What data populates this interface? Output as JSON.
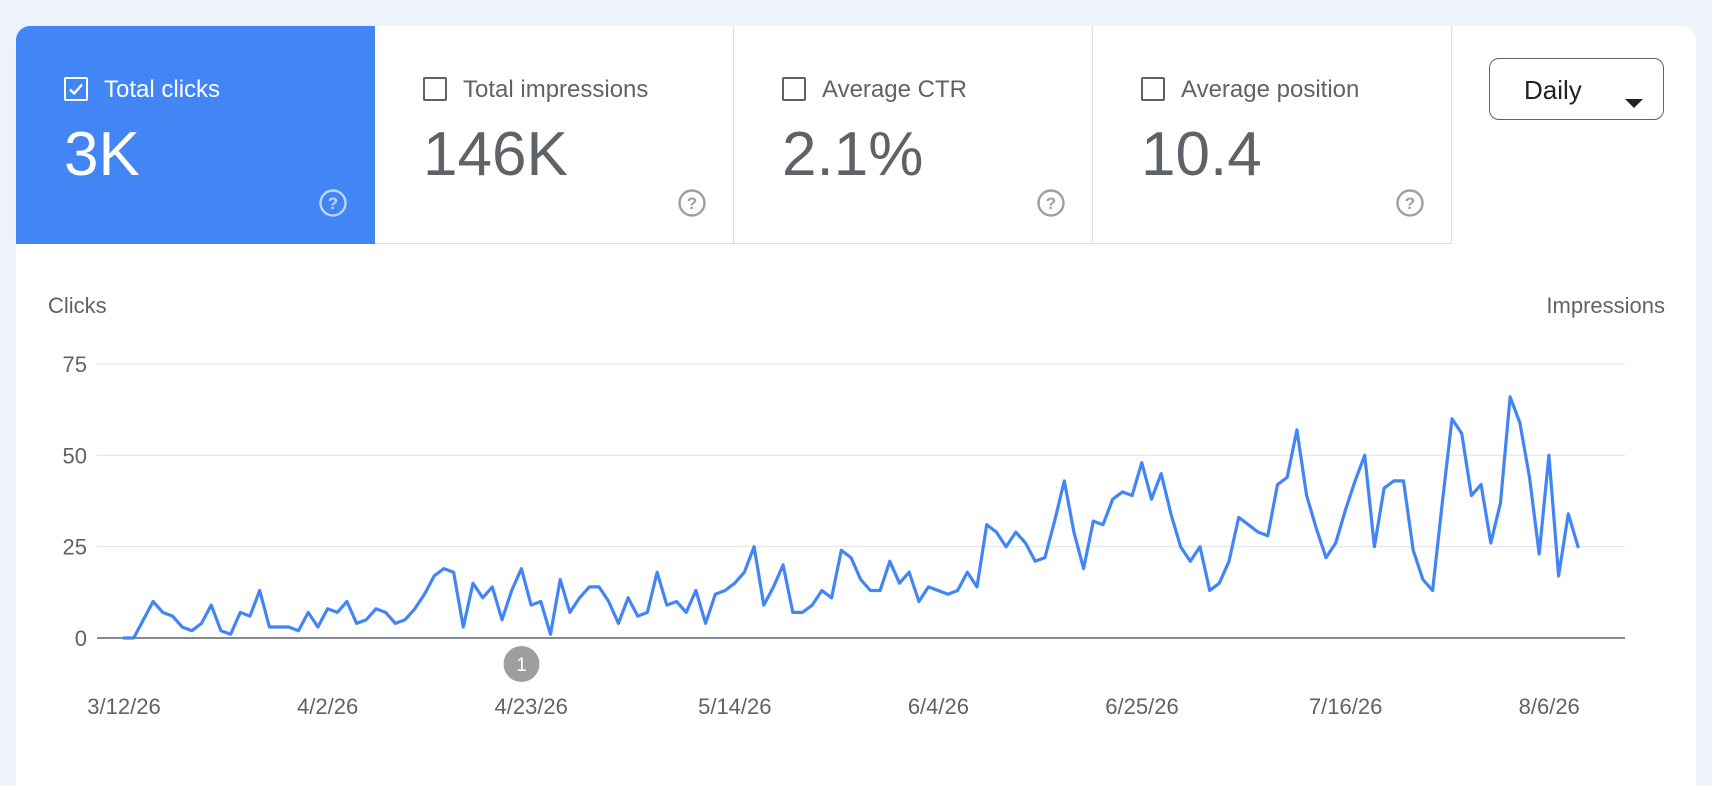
{
  "metrics": [
    {
      "key": "clicks",
      "label": "Total clicks",
      "value": "3K",
      "checked": true
    },
    {
      "key": "impressions",
      "label": "Total impressions",
      "value": "146K",
      "checked": false
    },
    {
      "key": "ctr",
      "label": "Average CTR",
      "value": "2.1%",
      "checked": false
    },
    {
      "key": "position",
      "label": "Average position",
      "value": "10.4",
      "checked": false
    }
  ],
  "period_select": {
    "selected": "Daily"
  },
  "colors": {
    "accent": "#4285f4",
    "line": "#4285f4",
    "annotation": "#9e9e9e",
    "text": "#5f6368"
  },
  "chart_data": {
    "type": "line",
    "left_axis_label": "Clicks",
    "right_axis_label": "Impressions",
    "ylim": [
      0,
      75
    ],
    "yticks": [
      0,
      25,
      50,
      75
    ],
    "xlim": [
      "3/12/26",
      "8/10/26"
    ],
    "xticks": [
      "3/12/26",
      "4/2/26",
      "4/23/26",
      "5/14/26",
      "6/4/26",
      "6/25/26",
      "7/16/26",
      "8/6/26"
    ],
    "grid": true,
    "series": [
      {
        "values": [
          0,
          0,
          5,
          10,
          7,
          6,
          3,
          2,
          4,
          9,
          2,
          1,
          7,
          6,
          13,
          3,
          3,
          3,
          2,
          7,
          3,
          8,
          7,
          10,
          4,
          5,
          8,
          7,
          4,
          5,
          8,
          12,
          17,
          19,
          18,
          3,
          15,
          11,
          14,
          5,
          13,
          19,
          9,
          10,
          1,
          16,
          7,
          11,
          14,
          14,
          10,
          4,
          11,
          6,
          7,
          18,
          9,
          10,
          7,
          13,
          4,
          12,
          13,
          15,
          18,
          25,
          9,
          14,
          20,
          7,
          7,
          9,
          13,
          11,
          24,
          22,
          16,
          13,
          13,
          21,
          15,
          18,
          10,
          14,
          13,
          12,
          13,
          18,
          14,
          31,
          29,
          25,
          29,
          26,
          21,
          22,
          32,
          43,
          29,
          19,
          32,
          31,
          38,
          40,
          39,
          48,
          38,
          45,
          34,
          25,
          21,
          25,
          13,
          15,
          21,
          33,
          31,
          29,
          28,
          42,
          44,
          57,
          39,
          30,
          22,
          26,
          35,
          43,
          50,
          25,
          41,
          43,
          43,
          24,
          16,
          13,
          37,
          60,
          56,
          39,
          42,
          26,
          37,
          66,
          59,
          44,
          23,
          50,
          17,
          34,
          25
        ]
      }
    ],
    "annotations": [
      {
        "label": "1",
        "date": "4/22/26"
      }
    ]
  }
}
